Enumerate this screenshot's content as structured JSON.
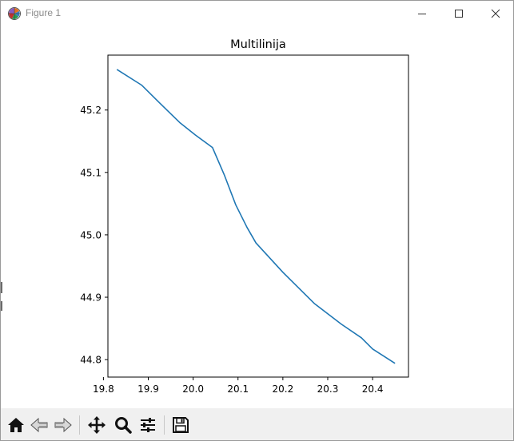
{
  "window": {
    "title": "Figure 1",
    "icon": "matplotlib-logo-icon",
    "controls": [
      "minimize-icon",
      "maximize-icon",
      "close-icon"
    ]
  },
  "toolbar": {
    "buttons": [
      {
        "name": "home",
        "icon": "home-icon"
      },
      {
        "name": "back",
        "icon": "back-arrow-icon"
      },
      {
        "name": "forward",
        "icon": "forward-arrow-icon"
      },
      {
        "name": "pan",
        "icon": "move-icon"
      },
      {
        "name": "zoom",
        "icon": "magnifier-icon"
      },
      {
        "name": "configure-subplots",
        "icon": "sliders-icon"
      },
      {
        "name": "save",
        "icon": "floppy-disk-icon"
      }
    ]
  },
  "colors": {
    "line": "#1f77b4",
    "toolbar_bg": "#f0f0f0",
    "title_text": "#8a8a8a"
  },
  "chart_data": {
    "type": "line",
    "title": "Multilinija",
    "xlabel": "",
    "ylabel": "",
    "xlim": [
      19.81,
      20.48
    ],
    "ylim": [
      44.772,
      45.288
    ],
    "xticks": [
      19.8,
      19.9,
      20.0,
      20.1,
      20.2,
      20.3,
      20.4
    ],
    "xtick_labels": [
      "19.8",
      "19.9",
      "20.0",
      "20.1",
      "20.2",
      "20.3",
      "20.4"
    ],
    "yticks": [
      44.8,
      44.9,
      45.0,
      45.1,
      45.2
    ],
    "ytick_labels": [
      "44.8",
      "44.9",
      "45.0",
      "45.1",
      "45.2"
    ],
    "grid": false,
    "series": [
      {
        "color": "#1f77b4",
        "x": [
          19.83,
          19.885,
          19.93,
          19.97,
          20.005,
          20.043,
          20.07,
          20.095,
          20.12,
          20.14,
          20.2,
          20.27,
          20.33,
          20.375,
          20.4,
          20.45
        ],
        "y": [
          45.265,
          45.24,
          45.208,
          45.18,
          45.16,
          45.14,
          45.095,
          45.048,
          45.012,
          44.987,
          44.94,
          44.89,
          44.857,
          44.835,
          44.817,
          44.794
        ]
      }
    ]
  }
}
